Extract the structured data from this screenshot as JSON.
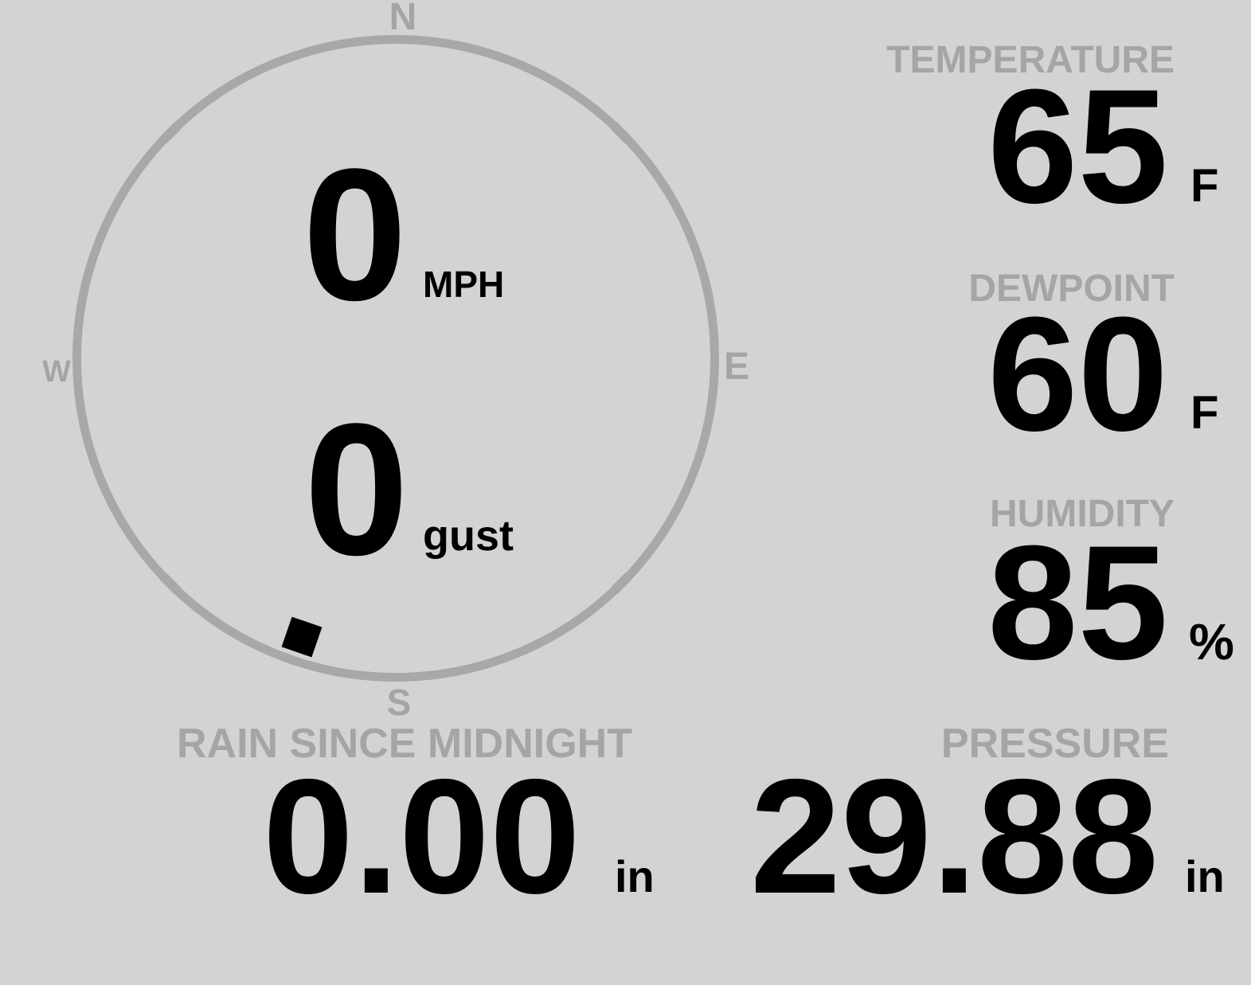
{
  "wind": {
    "speed": "0",
    "speed_unit": "MPH",
    "gust": "0",
    "gust_unit": "gust",
    "direction_deg": 199,
    "cardinals": {
      "n": "N",
      "e": "E",
      "s": "S",
      "w": "W"
    }
  },
  "metrics": {
    "temperature": {
      "label": "TEMPERATURE",
      "value": "65",
      "unit": "F"
    },
    "dewpoint": {
      "label": "DEWPOINT",
      "value": "60",
      "unit": "F"
    },
    "humidity": {
      "label": "HUMIDITY",
      "value": "85",
      "unit": "%"
    },
    "rain": {
      "label": "RAIN SINCE MIDNIGHT",
      "value": "0.00",
      "unit": "in"
    },
    "pressure": {
      "label": "PRESSURE",
      "value": "29.88",
      "unit": "in"
    }
  },
  "colors": {
    "background": "#d3d3d3",
    "muted_gray": "#a8a8a8",
    "label_gray": "#a5a5a5",
    "value_black": "#000000"
  }
}
